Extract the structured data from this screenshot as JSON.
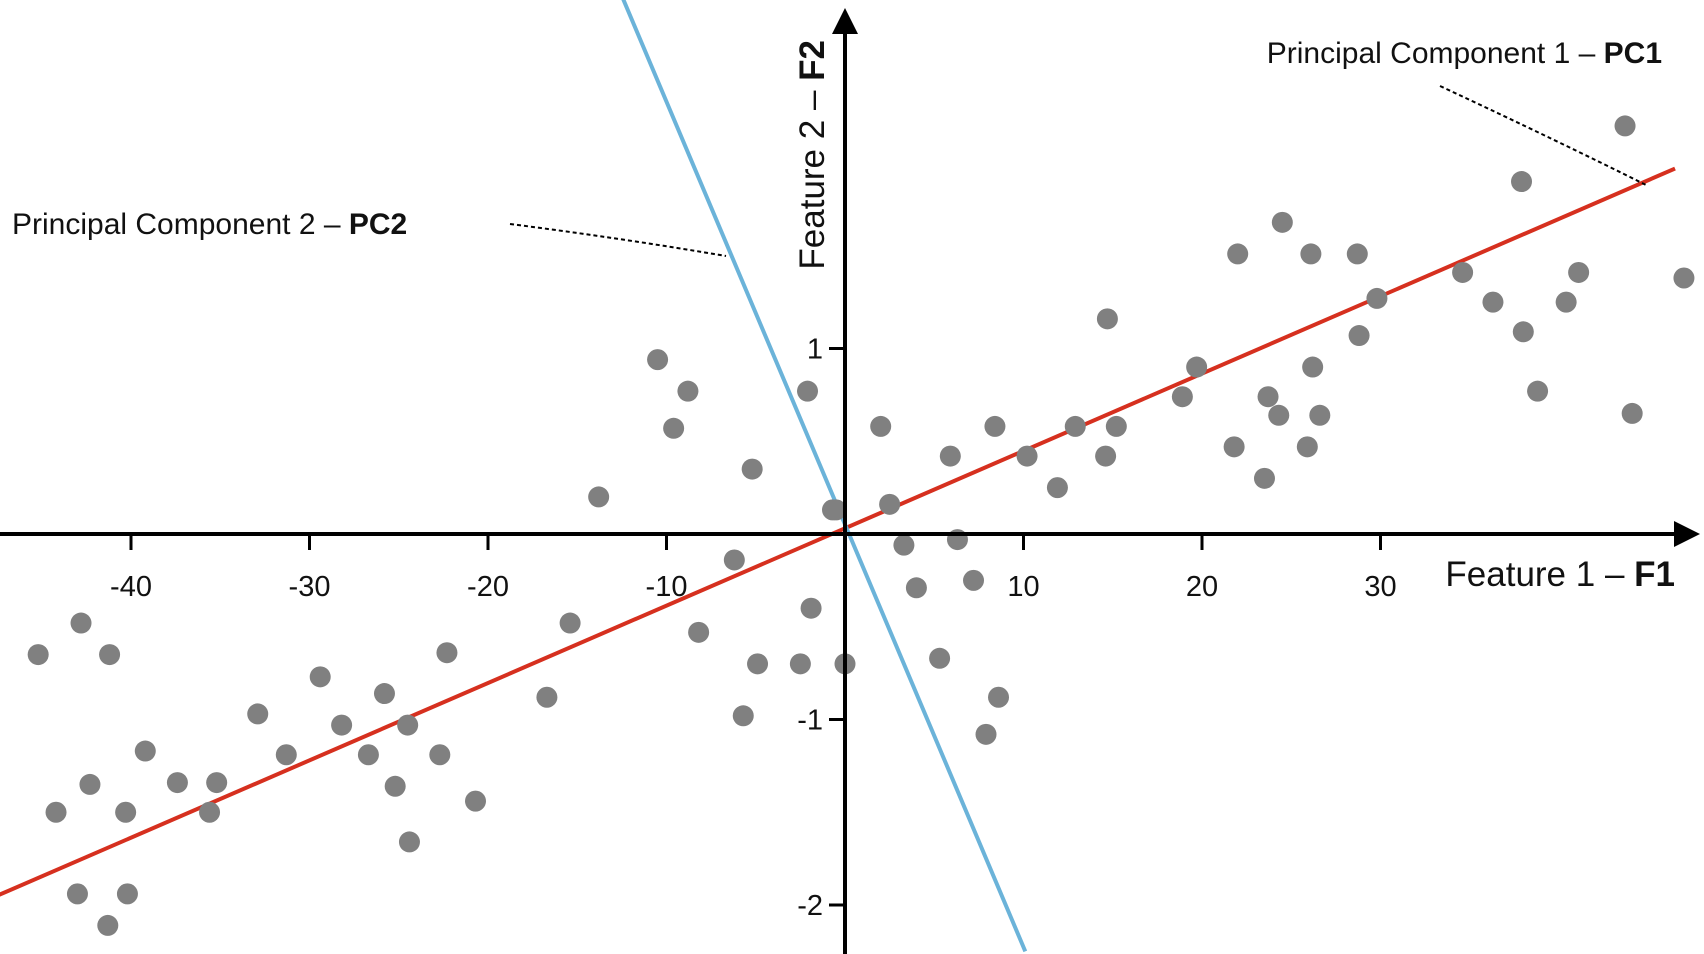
{
  "chart_data": {
    "type": "scatter",
    "title": "",
    "xlabel": "Feature 1 –",
    "xlabel_bold": "F1",
    "ylabel": "Feature 2 –",
    "ylabel_bold": "F2",
    "xlim": [
      -47.5,
      47.5
    ],
    "ylim": [
      -2.25,
      2.9
    ],
    "x_ticks": [
      -40,
      -30,
      -20,
      -10,
      10,
      20,
      30
    ],
    "x_tick_labels": [
      "-40",
      "-30",
      "-20",
      "-10",
      "10",
      "20",
      "30"
    ],
    "y_ticks": [
      1,
      -1,
      -2
    ],
    "y_tick_labels": [
      "1",
      "-1",
      "-2"
    ],
    "grid": false,
    "legend": "none",
    "colors": {
      "points": "#808080",
      "pc1": "#d6301f",
      "pc2": "#6bb3d9",
      "axes": "#000000"
    },
    "pc1_line": {
      "x": [
        -47.5,
        46.5
      ],
      "y": [
        -1.95,
        1.97
      ]
    },
    "pc2_line": {
      "x": [
        -12.5,
        10.1
      ],
      "y": [
        2.9,
        -2.25
      ]
    },
    "annotations": [
      {
        "text": "Principal Component 1 –",
        "bold": "PC1",
        "points_to": [
          45,
          1.9
        ]
      },
      {
        "text": "Principal Component 2 –",
        "bold": "PC2",
        "points_to": [
          -6.5,
          1.5
        ]
      }
    ],
    "points": [
      [
        -45.2,
        -0.65
      ],
      [
        -44.2,
        -1.5
      ],
      [
        -42.8,
        -0.48
      ],
      [
        -42.3,
        -1.35
      ],
      [
        -41.2,
        -0.65
      ],
      [
        -43,
        -1.94
      ],
      [
        -41.3,
        -2.11
      ],
      [
        -40.2,
        -1.94
      ],
      [
        -40.3,
        -1.5
      ],
      [
        -39.2,
        -1.17
      ],
      [
        -37.4,
        -1.34
      ],
      [
        -35.6,
        -1.5
      ],
      [
        -35.2,
        -1.34
      ],
      [
        -32.9,
        -0.97
      ],
      [
        -31.3,
        -1.19
      ],
      [
        -29.4,
        -0.77
      ],
      [
        -28.2,
        -1.03
      ],
      [
        -26.7,
        -1.19
      ],
      [
        -25.8,
        -0.86
      ],
      [
        -25.2,
        -1.36
      ],
      [
        -24.5,
        -1.03
      ],
      [
        -24.4,
        -1.66
      ],
      [
        -22.7,
        -1.19
      ],
      [
        -22.3,
        -0.64
      ],
      [
        -20.7,
        -1.44
      ],
      [
        -16.7,
        -0.88
      ],
      [
        -15.4,
        -0.48
      ],
      [
        -13.8,
        0.2
      ],
      [
        -10.5,
        0.94
      ],
      [
        -9.6,
        0.57
      ],
      [
        -8.8,
        0.77
      ],
      [
        -8.2,
        -0.53
      ],
      [
        -6.2,
        -0.14
      ],
      [
        -5.7,
        -0.98
      ],
      [
        -5.2,
        0.35
      ],
      [
        -4.9,
        -0.7
      ],
      [
        -2.5,
        -0.7
      ],
      [
        -2.1,
        0.77
      ],
      [
        -1.9,
        -0.4
      ],
      [
        -0.7,
        0.13
      ],
      [
        0,
        -0.7
      ],
      [
        2,
        0.58
      ],
      [
        2.5,
        0.16
      ],
      [
        3.3,
        -0.06
      ],
      [
        4,
        -0.29
      ],
      [
        5.3,
        -0.67
      ],
      [
        5.9,
        0.42
      ],
      [
        6.3,
        -0.03
      ],
      [
        7.2,
        -0.25
      ],
      [
        7.9,
        -1.08
      ],
      [
        8.4,
        0.58
      ],
      [
        8.6,
        -0.88
      ],
      [
        10.2,
        0.42
      ],
      [
        11.9,
        0.25
      ],
      [
        12.9,
        0.58
      ],
      [
        14.6,
        0.42
      ],
      [
        14.7,
        1.16
      ],
      [
        15.2,
        0.58
      ],
      [
        18.9,
        0.74
      ],
      [
        19.7,
        0.9
      ],
      [
        21.8,
        0.47
      ],
      [
        22,
        1.51
      ],
      [
        23.5,
        0.3
      ],
      [
        23.7,
        0.74
      ],
      [
        24.3,
        0.64
      ],
      [
        24.5,
        1.68
      ],
      [
        25.9,
        0.47
      ],
      [
        26.1,
        1.51
      ],
      [
        26.2,
        0.9
      ],
      [
        26.6,
        0.64
      ],
      [
        28.7,
        1.51
      ],
      [
        28.8,
        1.07
      ],
      [
        29.8,
        1.27
      ],
      [
        34.6,
        1.41
      ],
      [
        36.3,
        1.25
      ],
      [
        37.9,
        1.9
      ],
      [
        38,
        1.09
      ],
      [
        38.8,
        0.77
      ],
      [
        40.4,
        1.25
      ],
      [
        41.1,
        1.41
      ],
      [
        43.7,
        2.2
      ],
      [
        44.1,
        0.65
      ],
      [
        47,
        1.38
      ],
      [
        -0.5,
        0.13
      ]
    ]
  }
}
